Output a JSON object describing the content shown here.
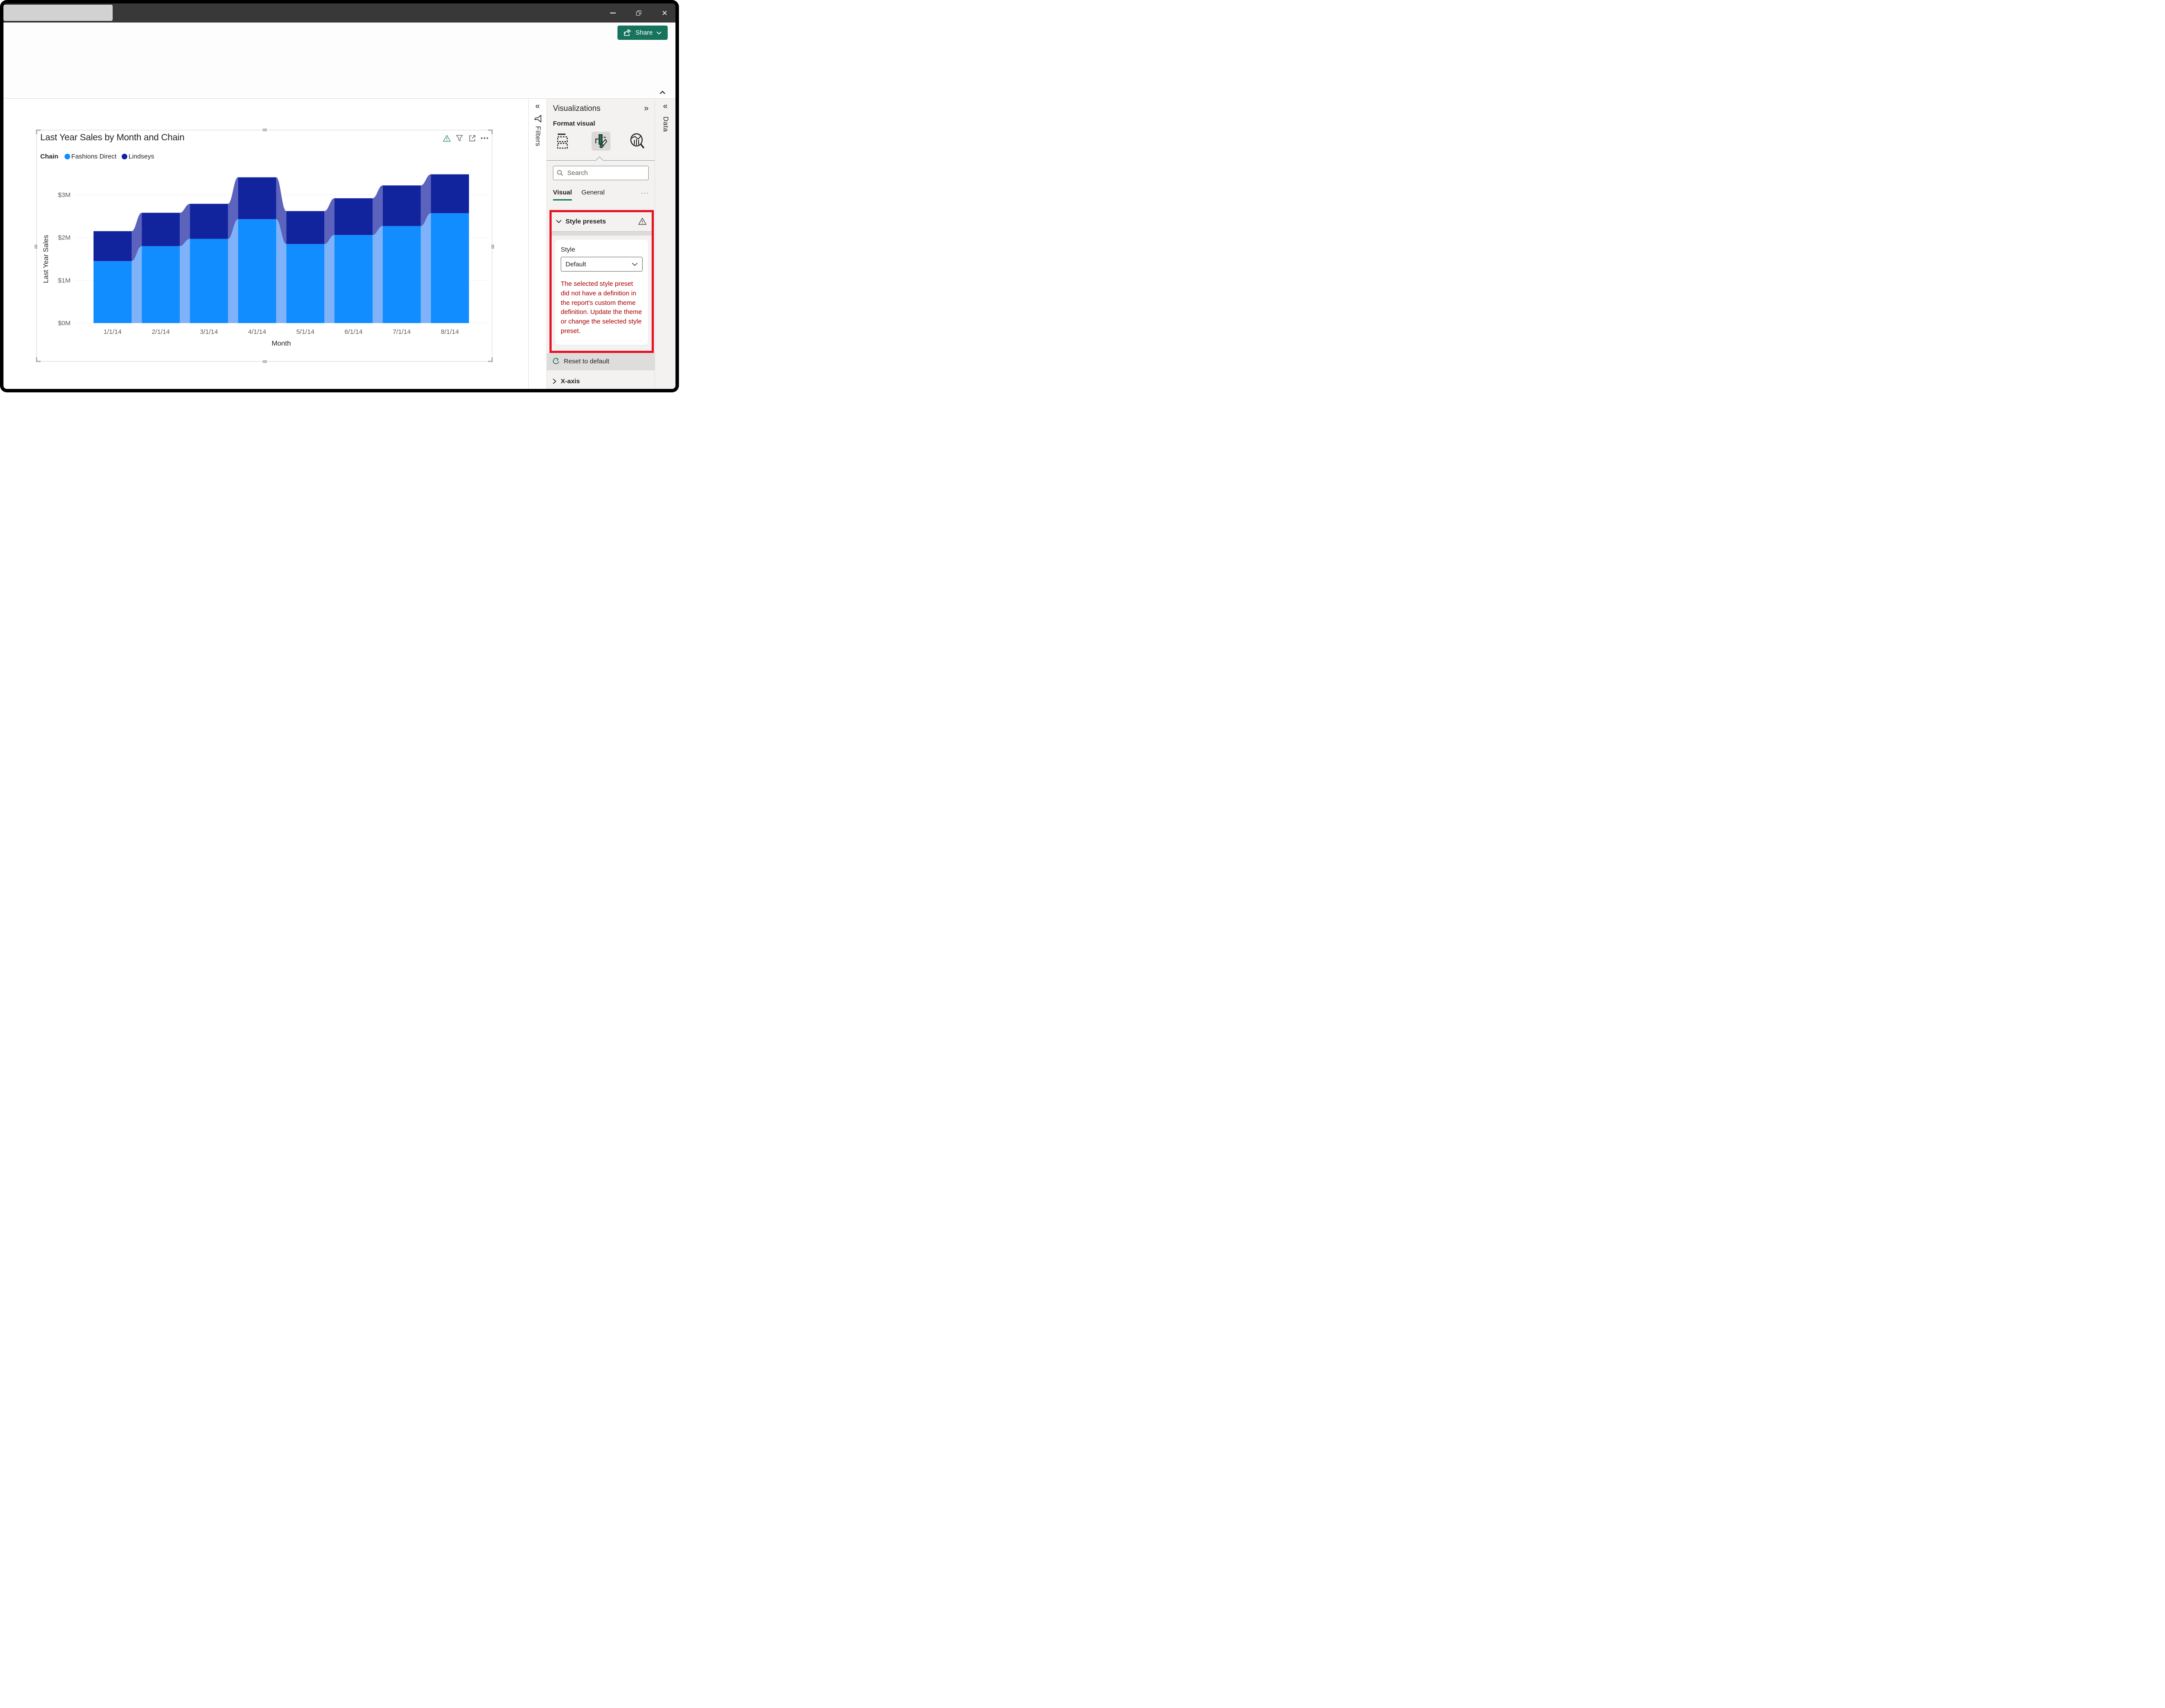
{
  "titlebar": {
    "controls": {
      "minimize": "Minimize",
      "restore": "Restore",
      "close": "Close"
    }
  },
  "ribbon": {
    "share_label": "Share"
  },
  "filters_pane": {
    "title": "Filters"
  },
  "data_pane": {
    "title": "Data"
  },
  "viz_pane": {
    "title": "Visualizations",
    "subtitle": "Format visual",
    "search_placeholder": "Search",
    "tabs": [
      {
        "label": "Visual"
      },
      {
        "label": "General"
      }
    ],
    "tabs_more": "···",
    "style_presets": {
      "header": "Style presets",
      "style_label": "Style",
      "style_value": "Default",
      "error_text": "The selected style preset did not have a definition in the report's custom theme definition. Update the theme or change the selected style preset."
    },
    "reset_label": "Reset to default",
    "next_section": "X-axis"
  },
  "chart_data": {
    "type": "area",
    "stacked": true,
    "stepped": true,
    "title": "Last Year Sales by Month and Chain",
    "legend_title": "Chain",
    "legend_position": "top",
    "x": [
      "1/1/14",
      "2/1/14",
      "3/1/14",
      "4/1/14",
      "5/1/14",
      "6/1/14",
      "7/1/14",
      "8/1/14"
    ],
    "series": [
      {
        "name": "Fashions Direct",
        "color": "#118DFF",
        "transition_color": "#7FB2F9",
        "values": [
          1.45,
          1.8,
          1.97,
          2.43,
          1.85,
          2.06,
          2.27,
          2.57
        ]
      },
      {
        "name": "Lindseys",
        "color": "#12239E",
        "transition_color": "#5B63BD",
        "values": [
          0.7,
          0.78,
          0.82,
          0.98,
          0.77,
          0.86,
          0.95,
          0.91
        ]
      }
    ],
    "xlabel": "Month",
    "ylabel": "Last Year Sales",
    "yticks": [
      "$0M",
      "$1M",
      "$2M",
      "$3M"
    ],
    "ylim": [
      0,
      3.6
    ],
    "grid": "dotted horizontal"
  },
  "colors": {
    "accent_teal": "#17735C",
    "highlight_red": "#E81123",
    "error_text_red": "#A80000",
    "titlebar_bg": "#383838",
    "panel_bg": "#F3F2F1",
    "chart_warning_green": "#2E8C6A"
  }
}
